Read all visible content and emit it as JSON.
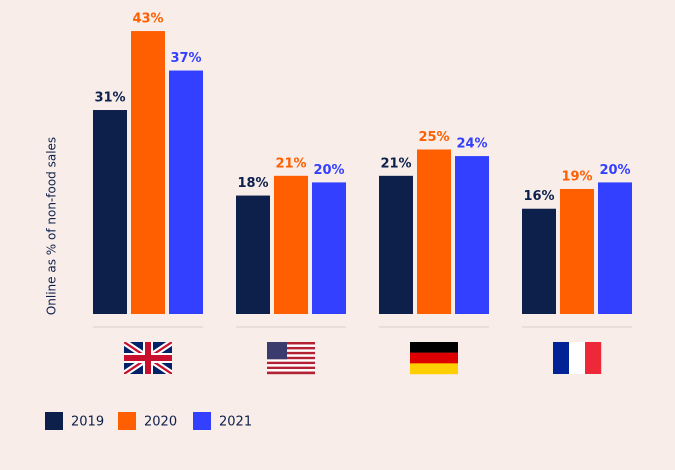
{
  "chart_data": {
    "type": "bar",
    "y_label": "Online as % of non-food sales",
    "categories": [
      null,
      null,
      null,
      null
    ],
    "series": [
      {
        "name": "2019",
        "color": "#0d1f4b",
        "values": [
          31,
          18,
          21,
          16
        ],
        "value_labels": [
          "31%",
          "18%",
          "21%",
          "16%"
        ]
      },
      {
        "name": "2020",
        "color": "#ff5f00",
        "values": [
          43,
          21,
          25,
          19
        ],
        "value_labels": [
          "43%",
          "21%",
          "25%",
          "19%"
        ]
      },
      {
        "name": "2021",
        "color": "#3340ff",
        "values": [
          37,
          20,
          24,
          20
        ],
        "value_labels": [
          "37%",
          "20%",
          "24%",
          "20%"
        ]
      }
    ]
  }
}
